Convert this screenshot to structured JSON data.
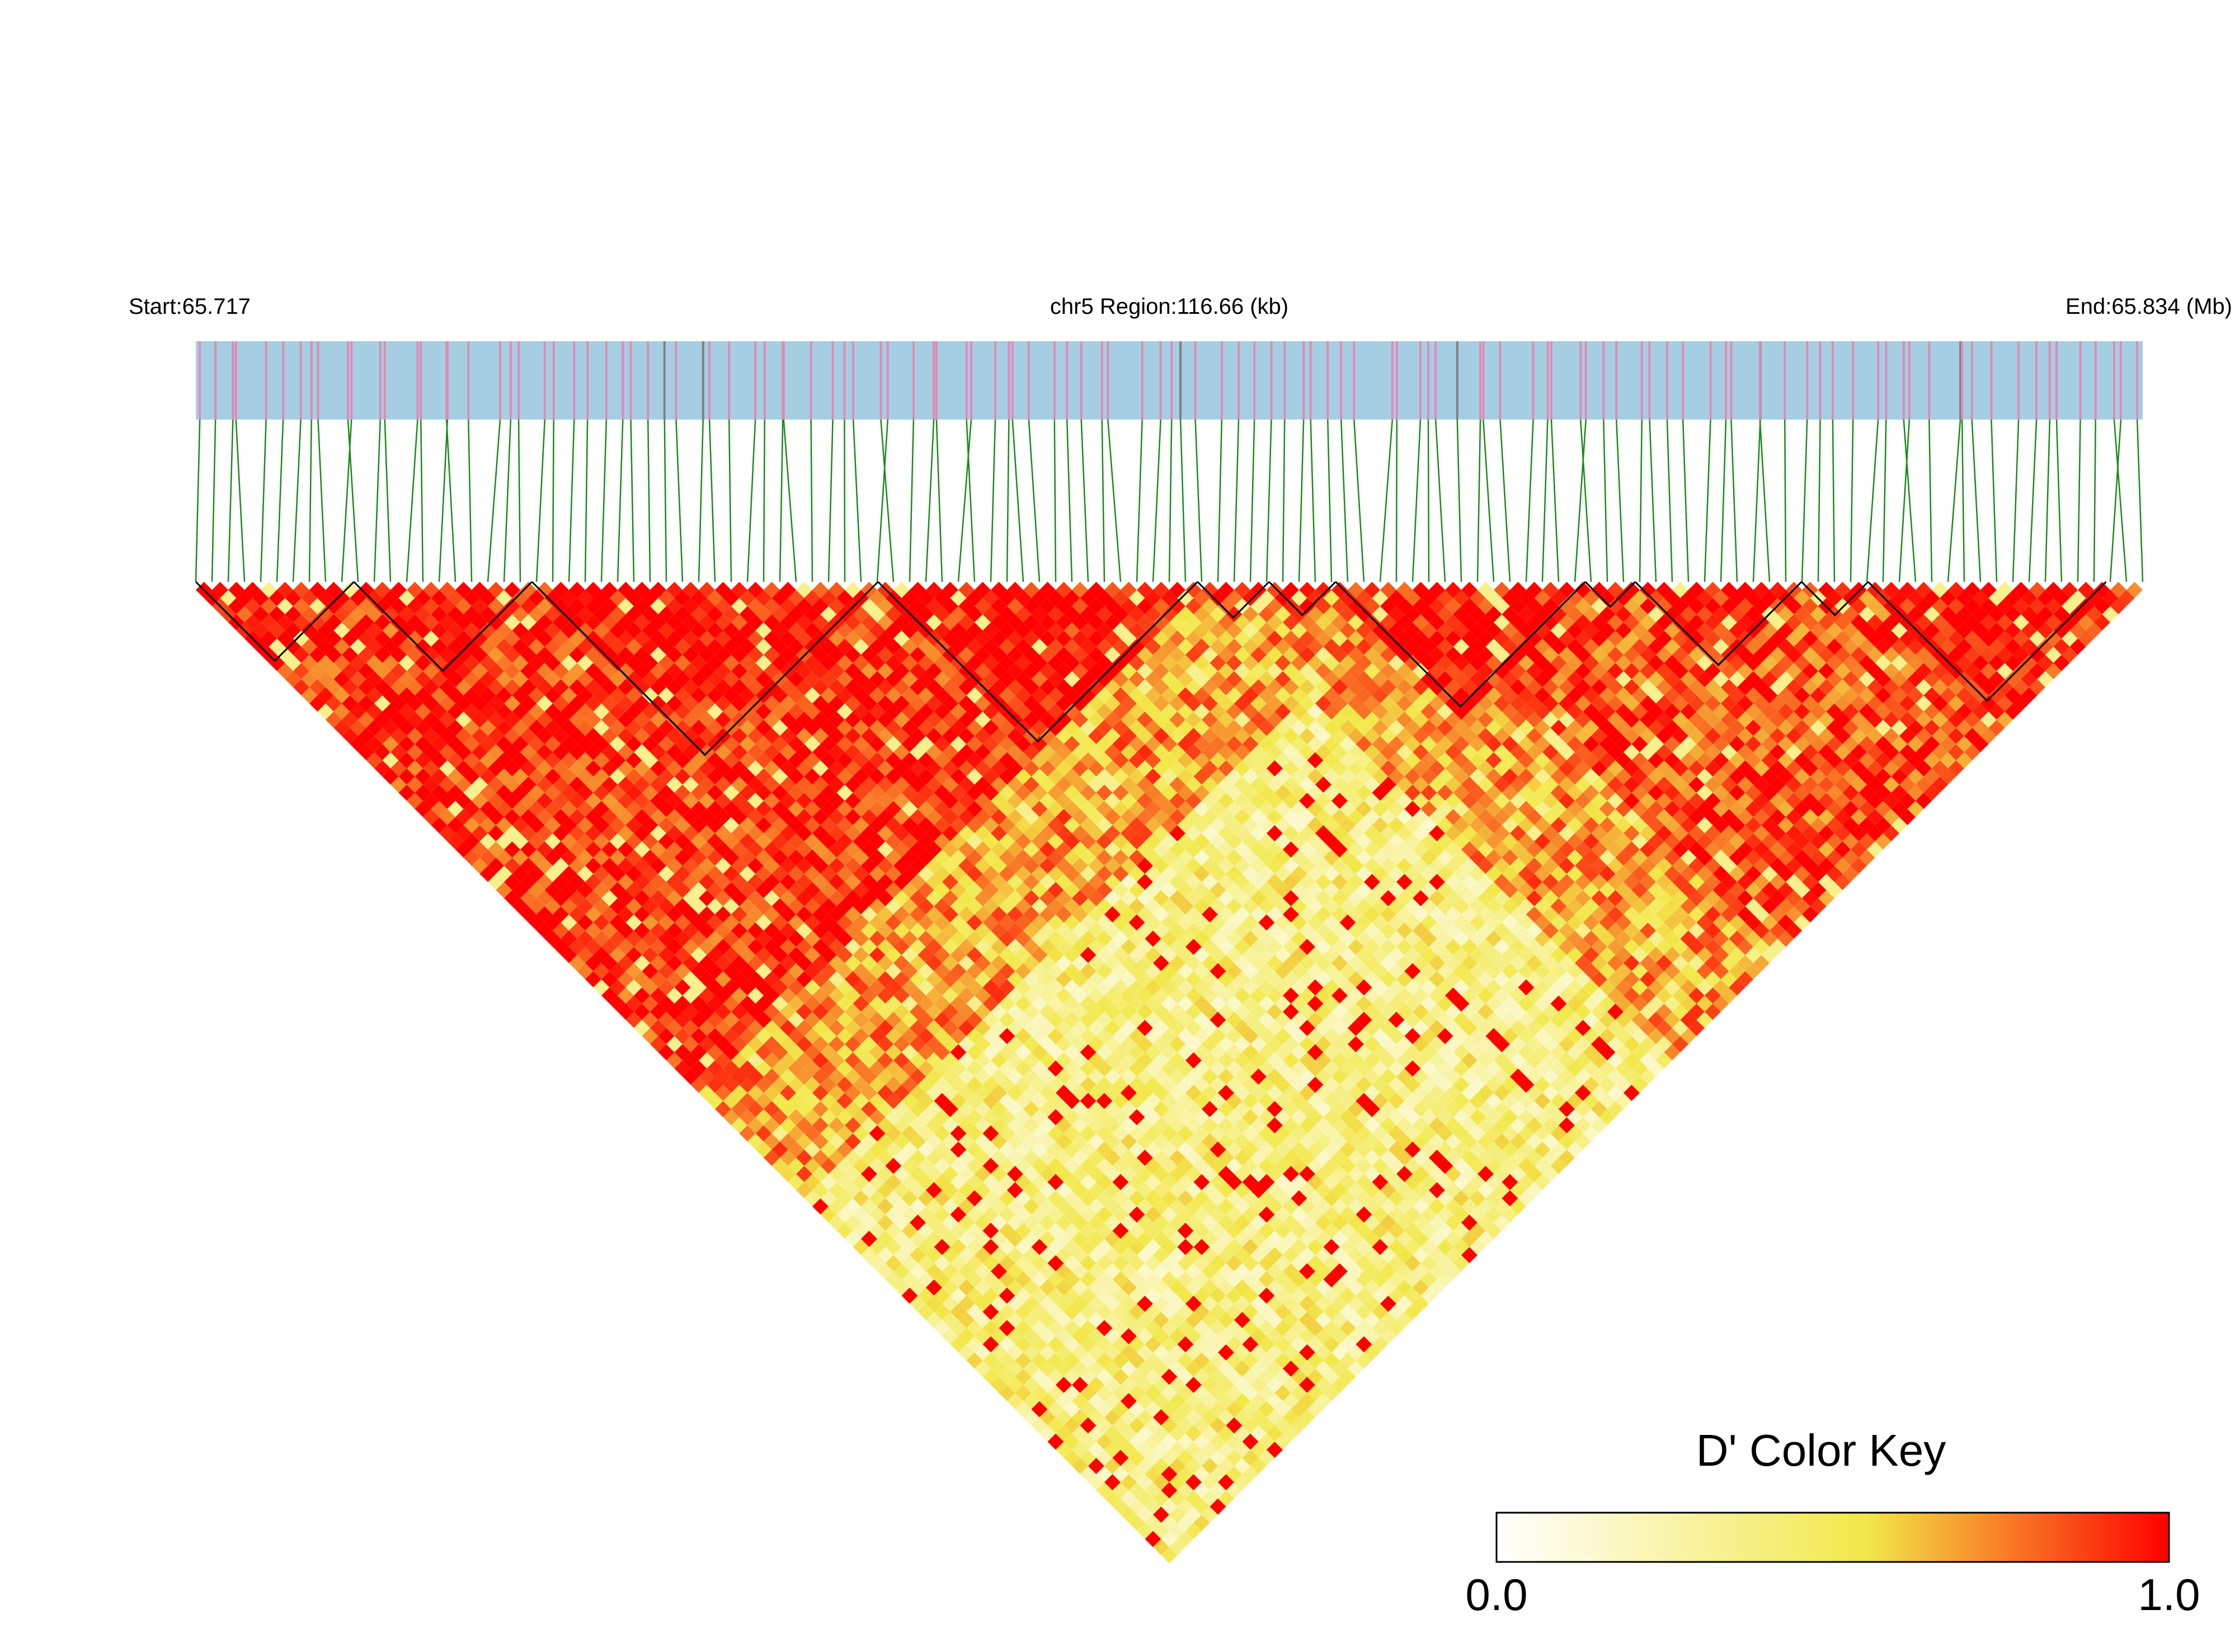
{
  "chart_data": {
    "type": "heatmap",
    "subtype": "ld-triangle",
    "header": {
      "start_label": "Start:65.717",
      "region_label": "chr5 Region:116.66 (kb)",
      "end_label": "End:65.834 (Mb)"
    },
    "chromosome": "chr5",
    "start_mb": 65.717,
    "end_mb": 65.834,
    "region_kb": 116.66,
    "color_key": {
      "title": "D' Color Key",
      "min_label": "0.0",
      "max_label": "1.0",
      "min": 0.0,
      "max": 1.0,
      "stops": [
        "#ffffff",
        "#f2e84a",
        "#ff0000"
      ]
    },
    "colors": {
      "track_background": "#a6cee3",
      "snp_tick": "#e08ab5",
      "snp_tick_alt": "#808080",
      "connector": "#1a8a1a",
      "block_outline": "#000000"
    },
    "haplotype_blocks_mb": [
      [
        65.717,
        65.7265
      ],
      [
        65.7265,
        65.7372
      ],
      [
        65.7372,
        65.758
      ],
      [
        65.758,
        65.7772
      ],
      [
        65.7772,
        65.7815
      ],
      [
        65.7815,
        65.7855
      ],
      [
        65.7855,
        65.8005
      ],
      [
        65.8005,
        65.8035
      ],
      [
        65.8035,
        65.8135
      ],
      [
        65.8135,
        65.8175
      ],
      [
        65.8175,
        65.8318
      ]
    ],
    "dprime_structure": {
      "description_regions": [
        {
          "from_mb": 65.717,
          "to_mb": 65.777,
          "dprime": 0.97
        },
        {
          "from_mb": 65.79,
          "to_mb": 65.834,
          "dprime": 0.9
        },
        {
          "cross_from_mb": [
            65.717,
            65.777
          ],
          "cross_to_mb": [
            65.79,
            65.834
          ],
          "dprime": 0.35
        }
      ]
    }
  }
}
